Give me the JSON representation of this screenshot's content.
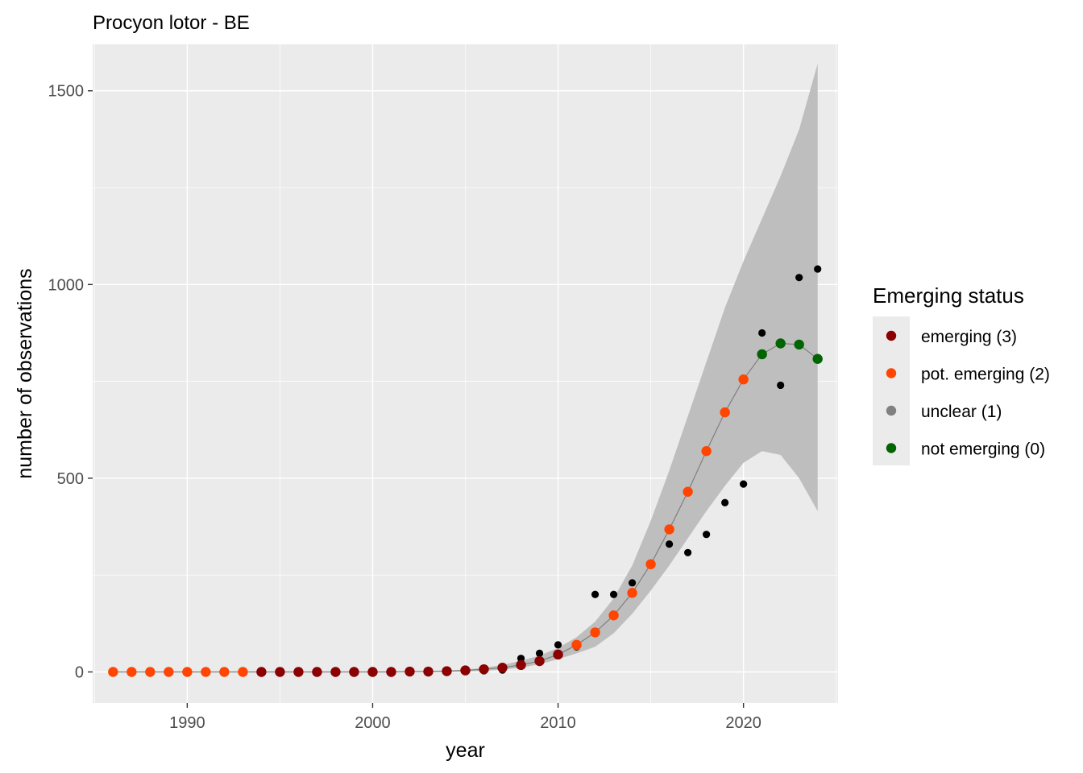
{
  "chart_data": {
    "type": "scatter",
    "title": "Procyon lotor - BE",
    "xlabel": "year",
    "ylabel": "number of observations",
    "xlim": [
      1984.9,
      2025.1
    ],
    "ylim": [
      -80,
      1620
    ],
    "x_ticks": [
      1990,
      2000,
      2010,
      2020
    ],
    "x_tick_labels": [
      "1990",
      "2000",
      "2010",
      "2020"
    ],
    "y_ticks": [
      0,
      500,
      1000,
      1500
    ],
    "y_tick_labels": [
      "0",
      "500",
      "1000",
      "1500"
    ],
    "grid": true,
    "legend_position": "right",
    "legend": {
      "title": "Emerging status",
      "items": [
        {
          "label": "emerging (3)",
          "color": "#8b0000"
        },
        {
          "label": "pot. emerging (2)",
          "color": "#ff4500"
        },
        {
          "label": "unclear (1)",
          "color": "#808080"
        },
        {
          "label": "not emerging (0)",
          "color": "#006400"
        }
      ]
    },
    "colors": {
      "panel_background": "#ebebeb",
      "grid": "#ffffff",
      "ribbon": "#bebebe",
      "fit_line": "#7f7f7f",
      "observed_point": "#000000"
    },
    "observed": {
      "x": [
        1986,
        1987,
        1988,
        1989,
        1990,
        1991,
        1992,
        1993,
        1994,
        1995,
        1996,
        1997,
        1998,
        1999,
        2000,
        2001,
        2002,
        2003,
        2004,
        2005,
        2006,
        2007,
        2008,
        2009,
        2010,
        2011,
        2012,
        2013,
        2014,
        2015,
        2016,
        2017,
        2018,
        2019,
        2020,
        2021,
        2022,
        2023,
        2024
      ],
      "y": [
        0,
        0,
        0,
        0,
        0,
        0,
        0,
        0,
        0,
        0,
        0,
        0,
        0,
        0,
        0,
        0,
        0,
        0,
        0,
        2,
        3,
        5,
        35,
        48,
        70,
        65,
        200,
        200,
        230,
        280,
        330,
        308,
        355,
        437,
        485,
        875,
        740,
        1018,
        1040
      ]
    },
    "fitted": {
      "x": [
        1986,
        1987,
        1988,
        1989,
        1990,
        1991,
        1992,
        1993,
        1994,
        1995,
        1996,
        1997,
        1998,
        1999,
        2000,
        2001,
        2002,
        2003,
        2004,
        2005,
        2006,
        2007,
        2008,
        2009,
        2010,
        2011,
        2012,
        2013,
        2014,
        2015,
        2016,
        2017,
        2018,
        2019,
        2020,
        2021,
        2022,
        2023,
        2024
      ],
      "y": [
        0,
        0,
        0,
        0,
        0,
        0,
        0,
        0,
        0,
        0,
        0,
        0,
        0,
        0,
        0,
        0,
        1,
        1,
        2,
        4,
        7,
        11,
        18,
        28,
        45,
        70,
        102,
        146,
        204,
        278,
        368,
        465,
        570,
        670,
        755,
        820,
        848,
        845,
        808
      ],
      "status": [
        2,
        2,
        2,
        2,
        2,
        2,
        2,
        2,
        3,
        3,
        3,
        3,
        3,
        3,
        3,
        3,
        3,
        3,
        3,
        3,
        3,
        3,
        3,
        3,
        3,
        2,
        2,
        2,
        2,
        2,
        2,
        2,
        2,
        2,
        2,
        0,
        0,
        0,
        0
      ]
    },
    "ribbon": {
      "x": [
        1986,
        1990,
        1995,
        2000,
        2003,
        2005,
        2006,
        2007,
        2008,
        2009,
        2010,
        2011,
        2012,
        2013,
        2014,
        2015,
        2016,
        2017,
        2018,
        2019,
        2020,
        2021,
        2022,
        2023,
        2024
      ],
      "lower": [
        0,
        0,
        0,
        0,
        0,
        1,
        3,
        6,
        11,
        20,
        33,
        48,
        65,
        100,
        150,
        210,
        275,
        345,
        415,
        480,
        540,
        570,
        560,
        500,
        415
      ],
      "upper": [
        0,
        0,
        0,
        0,
        2,
        6,
        11,
        18,
        29,
        42,
        62,
        90,
        130,
        190,
        275,
        390,
        520,
        660,
        800,
        940,
        1060,
        1170,
        1280,
        1400,
        1570
      ]
    }
  }
}
